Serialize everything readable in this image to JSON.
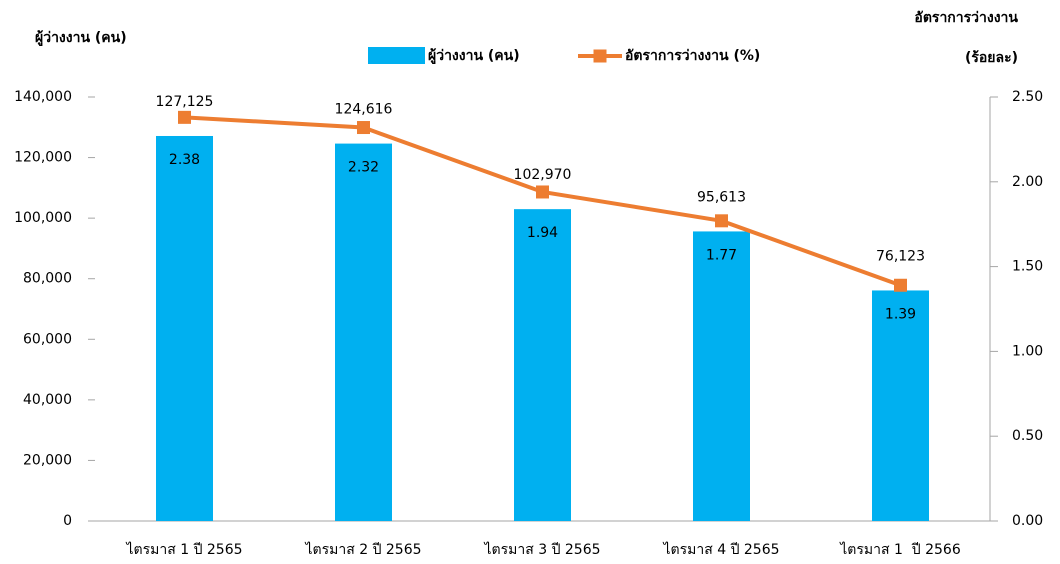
{
  "chart_data": {
    "type": "bar_line",
    "ylabel": "ผู้ว่างงาน (คน)",
    "y2label": [
      "อัตราการว่างงาน",
      "(ร้อยละ)"
    ],
    "categories": [
      "ไตรมาส 1 ปี 2565",
      "ไตรมาส 2 ปี 2565",
      "ไตรมาส 3 ปี 2565",
      "ไตรมาส 4 ปี 2565",
      "ไตรมาส 1  ปี 2566"
    ],
    "series": [
      {
        "name": "ผู้ว่างงาน (คน)",
        "type": "bar",
        "color": "#00b0f0",
        "values": [
          127125,
          124616,
          102970,
          95613,
          76123
        ],
        "value_labels": [
          "127,125",
          "124,616",
          "102,970",
          "95,613",
          "76,123"
        ]
      },
      {
        "name": "อัตราการว่างงาน (%)",
        "type": "line",
        "axis": "y2",
        "color": "#ed7d31",
        "values": [
          2.38,
          2.32,
          1.94,
          1.77,
          1.39
        ]
      }
    ],
    "ylim": [
      0,
      140000
    ],
    "yticks": [
      0,
      {
        "value": 20000,
        "label": "20,000"
      },
      {
        "value": 40000,
        "label": "40,000"
      },
      {
        "value": 60000,
        "label": "60,000"
      },
      {
        "value": 80000,
        "label": "80,000"
      },
      {
        "value": 100000,
        "label": "100,000"
      },
      {
        "value": 120000,
        "label": "120,000"
      },
      {
        "value": 140000,
        "label": "140,000"
      }
    ],
    "y2lim": [
      0,
      2.5
    ],
    "y2ticks": [
      {
        "value": 0,
        "label": "0.00"
      },
      {
        "value": 0.5,
        "label": "0.50"
      },
      {
        "value": 1,
        "label": "1.00"
      },
      {
        "value": 1.5,
        "label": "1.50"
      },
      {
        "value": 2,
        "label": "2.00"
      },
      {
        "value": 2.5,
        "label": "2.50"
      }
    ],
    "legend": "top"
  }
}
